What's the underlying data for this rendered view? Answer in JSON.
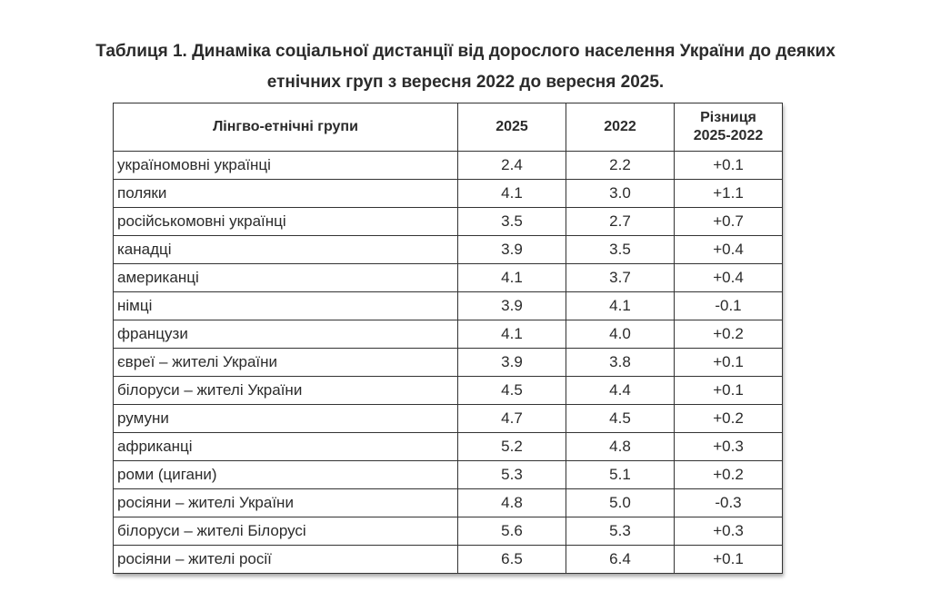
{
  "title": {
    "line1": "Таблиця 1.  Динаміка соціальної дистанції від дорослого населення України до деяких",
    "line2": "етнічних груп з вересня 2022 до вересня 2025."
  },
  "table": {
    "headers": {
      "group": "Лінгво-етнічні групи",
      "y2025": "2025",
      "y2022": "2022",
      "diff_line1": "Різниця",
      "diff_line2": "2025-2022"
    },
    "rows": [
      {
        "group": "україномовні українці",
        "y2025": "2.4",
        "y2022": "2.2",
        "diff": "+0.1"
      },
      {
        "group": "поляки",
        "y2025": "4.1",
        "y2022": "3.0",
        "diff": "+1.1"
      },
      {
        "group": "російськомовні українці",
        "y2025": "3.5",
        "y2022": "2.7",
        "diff": "+0.7"
      },
      {
        "group": "канадці",
        "y2025": "3.9",
        "y2022": "3.5",
        "diff": "+0.4"
      },
      {
        "group": "американці",
        "y2025": "4.1",
        "y2022": "3.7",
        "diff": "+0.4"
      },
      {
        "group": "німці",
        "y2025": "3.9",
        "y2022": "4.1",
        "diff": "-0.1"
      },
      {
        "group": "французи",
        "y2025": "4.1",
        "y2022": "4.0",
        "diff": "+0.2"
      },
      {
        "group": "євреї – жителі України",
        "y2025": "3.9",
        "y2022": "3.8",
        "diff": "+0.1"
      },
      {
        "group": "білоруси – жителі України",
        "y2025": "4.5",
        "y2022": "4.4",
        "diff": "+0.1"
      },
      {
        "group": "румуни",
        "y2025": "4.7",
        "y2022": "4.5",
        "diff": "+0.2"
      },
      {
        "group": "африканці",
        "y2025": "5.2",
        "y2022": "4.8",
        "diff": "+0.3"
      },
      {
        "group": "роми (цигани)",
        "y2025": "5.3",
        "y2022": "5.1",
        "diff": "+0.2"
      },
      {
        "group": "росіяни – жителі України",
        "y2025": "4.8",
        "y2022": "5.0",
        "diff": "-0.3"
      },
      {
        "group": "білоруси – жителі Білорусі",
        "y2025": "5.6",
        "y2022": "5.3",
        "diff": "+0.3"
      },
      {
        "group": "росіяни – жителі росії",
        "y2025": "6.5",
        "y2022": "6.4",
        "diff": "+0.1"
      }
    ]
  }
}
